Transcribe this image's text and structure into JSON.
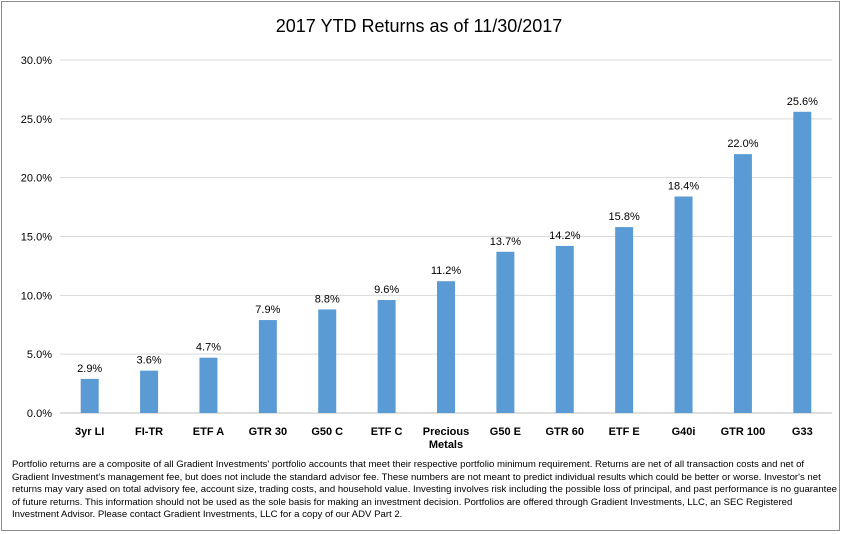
{
  "chart_data": {
    "type": "bar",
    "title": "2017 YTD Returns as of 11/30/2017",
    "xlabel": "",
    "ylabel": "",
    "categories": [
      "3yr LI",
      "FI-TR",
      "ETF A",
      "GTR 30",
      "G50 C",
      "ETF C",
      "Precious Metals",
      "G50 E",
      "GTR 60",
      "ETF E",
      "G40i",
      "GTR 100",
      "G33"
    ],
    "values": [
      2.9,
      3.6,
      4.7,
      7.9,
      8.8,
      9.6,
      11.2,
      13.7,
      14.2,
      15.8,
      18.4,
      22.0,
      25.6
    ],
    "data_labels": [
      "2.9%",
      "3.6%",
      "4.7%",
      "7.9%",
      "8.8%",
      "9.6%",
      "11.2%",
      "13.7%",
      "14.2%",
      "15.8%",
      "18.4%",
      "22.0%",
      "25.6%"
    ],
    "ylim": [
      0,
      30
    ],
    "yticks": [
      0,
      5,
      10,
      15,
      20,
      25,
      30
    ],
    "ytick_labels": [
      "0.0%",
      "5.0%",
      "10.0%",
      "15.0%",
      "20.0%",
      "25.0%",
      "30.0%"
    ],
    "grid": true,
    "legend": "none",
    "bar_color": "#5b9bd5"
  },
  "footnote": "Portfolio returns are a composite of all Gradient Investments' portfolio accounts that meet their respective portfolio minimum requirement.  Returns are net of all transaction costs and net of Gradient Investment's management fee, but does not include the standard advisor fee.  These numbers are not meant to predict individual results which could be better or worse.  Investor's net returns may vary ased on total advisory fee, account size, trading costs, and household value.  Investing involves risk including the possible loss of principal, and past performance is no guarantee of future returns.  This information should not be used as the sole basis for making an investment decision.  Portfolios are offered through Gradient Investments, LLC, an SEC Registered Investment Advisor.  Please contact Gradient Investments, LLC for a copy of our ADV Part 2."
}
